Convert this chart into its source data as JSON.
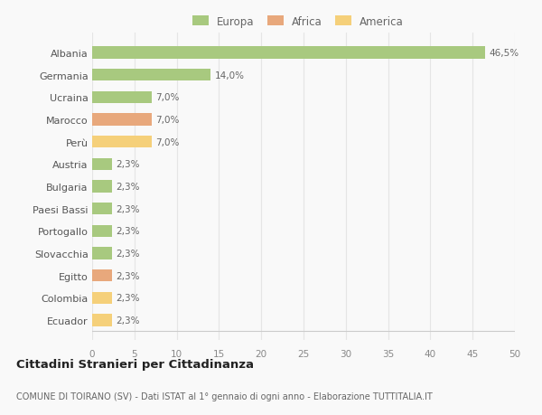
{
  "categories": [
    "Albania",
    "Germania",
    "Ucraina",
    "Marocco",
    "Perù",
    "Austria",
    "Bulgaria",
    "Paesi Bassi",
    "Portogallo",
    "Slovacchia",
    "Egitto",
    "Colombia",
    "Ecuador"
  ],
  "values": [
    46.5,
    14.0,
    7.0,
    7.0,
    7.0,
    2.3,
    2.3,
    2.3,
    2.3,
    2.3,
    2.3,
    2.3,
    2.3
  ],
  "labels": [
    "46,5%",
    "14,0%",
    "7,0%",
    "7,0%",
    "7,0%",
    "2,3%",
    "2,3%",
    "2,3%",
    "2,3%",
    "2,3%",
    "2,3%",
    "2,3%",
    "2,3%"
  ],
  "colors": [
    "#a8c97f",
    "#a8c97f",
    "#a8c97f",
    "#e8a87c",
    "#f5d07a",
    "#a8c97f",
    "#a8c97f",
    "#a8c97f",
    "#a8c97f",
    "#a8c97f",
    "#e8a87c",
    "#f5d07a",
    "#f5d07a"
  ],
  "legend": [
    {
      "label": "Europa",
      "color": "#a8c97f"
    },
    {
      "label": "Africa",
      "color": "#e8a87c"
    },
    {
      "label": "America",
      "color": "#f5d07a"
    }
  ],
  "xlim": [
    0,
    50
  ],
  "xticks": [
    0,
    5,
    10,
    15,
    20,
    25,
    30,
    35,
    40,
    45,
    50
  ],
  "title": "Cittadini Stranieri per Cittadinanza",
  "subtitle": "COMUNE DI TOIRANO (SV) - Dati ISTAT al 1° gennaio di ogni anno - Elaborazione TUTTITALIA.IT",
  "background_color": "#f9f9f9",
  "grid_color": "#e5e5e5",
  "bar_height": 0.55
}
